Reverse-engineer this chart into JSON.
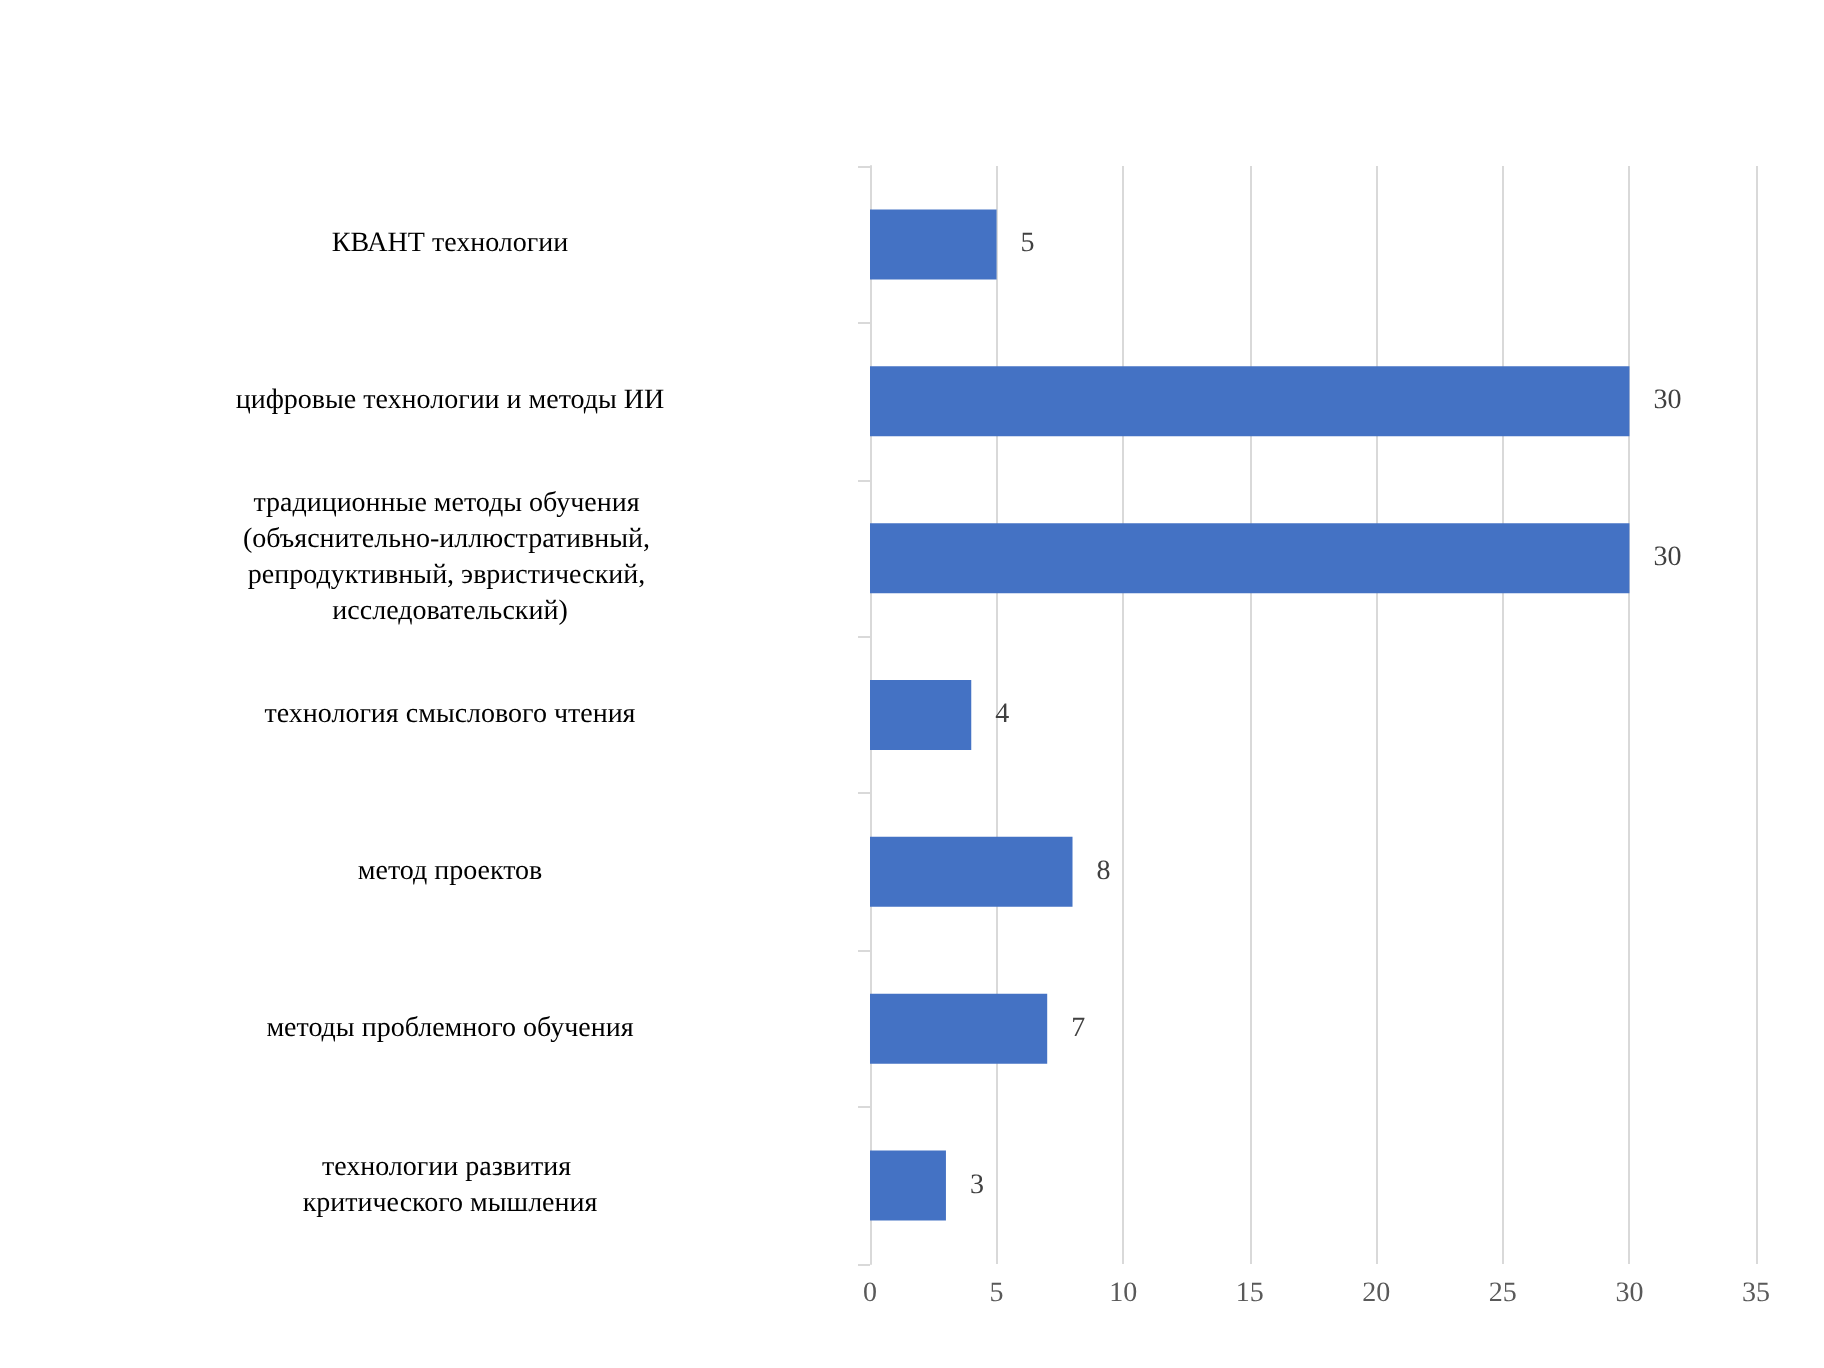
{
  "chart_data": {
    "type": "bar",
    "orientation": "horizontal",
    "categories": [
      "КВАНТ технологии",
      "цифровые технологии и методы ИИ",
      "традиционные методы обучения (объяснительно-иллюстративный, репродуктивный, эвристический, исследовательский)",
      "технология смыслового чтения",
      "метод проектов",
      "методы проблемного обучения",
      "технологии развития критического мышления"
    ],
    "values": [
      5,
      30,
      30,
      4,
      8,
      7,
      3
    ],
    "color": "#4472c4",
    "xlim": [
      0,
      35
    ],
    "xticks": [
      0,
      5,
      10,
      15,
      20,
      25,
      30,
      35
    ],
    "grid": "x",
    "data_labels": true
  }
}
